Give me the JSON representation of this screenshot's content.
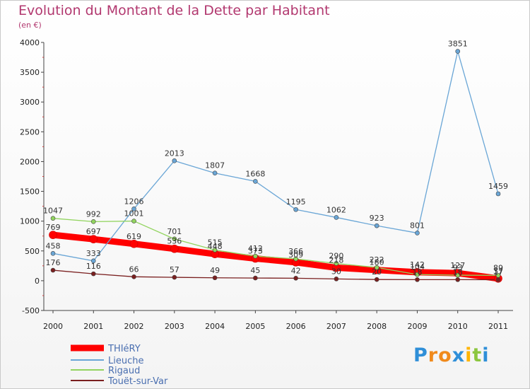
{
  "chart_data": {
    "type": "line",
    "title": "Evolution du Montant de la Dette par Habitant",
    "subtitle": "(en €)",
    "x": [
      "2000",
      "2001",
      "2002",
      "2003",
      "2004",
      "2005",
      "2006",
      "2007",
      "2008",
      "2009",
      "2010",
      "2011"
    ],
    "ylim": [
      -500,
      4000
    ],
    "yticks": [
      -500,
      0,
      500,
      1000,
      1500,
      2000,
      2500,
      3000,
      3500,
      4000
    ],
    "grid": false,
    "legend_position": "bottom-left",
    "series": [
      {
        "name": "THIéRY",
        "color": "#ff0000",
        "values": [
          769,
          697,
          619,
          536,
          448,
          373,
          309,
          218,
          180,
          142,
          127,
          37
        ]
      },
      {
        "name": "Lieuche",
        "color": "#6aa6d6",
        "values": [
          458,
          333,
          1206,
          2013,
          1807,
          1668,
          1195,
          1062,
          923,
          801,
          3851,
          1459
        ]
      },
      {
        "name": "Rigaud",
        "color": "#92d45f",
        "values": [
          1047,
          992,
          1001,
          701,
          515,
          412,
          366,
          290,
          222,
          104,
          93,
          89
        ]
      },
      {
        "name": "Touët-sur-Var",
        "color": "#7a1f1f",
        "values": [
          176,
          116,
          66,
          57,
          49,
          45,
          42,
          30,
          20,
          18,
          18,
          17
        ]
      }
    ]
  },
  "logo": {
    "text": "Proxiti"
  }
}
